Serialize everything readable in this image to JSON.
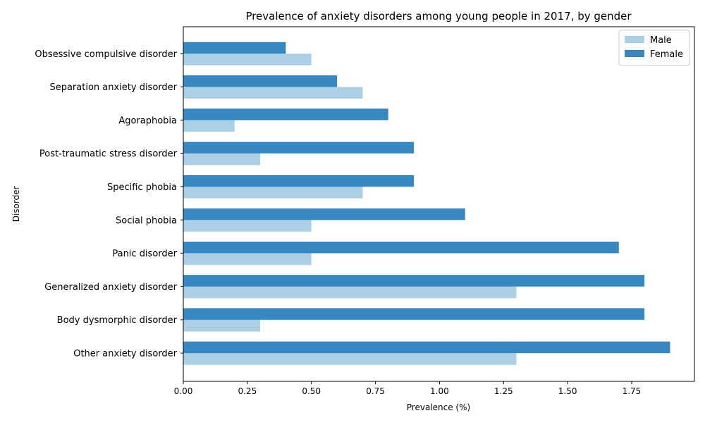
{
  "chart_data": {
    "type": "bar",
    "orientation": "horizontal",
    "title": "Prevalence of anxiety disorders among young people in 2017, by gender",
    "xlabel": "Prevalence (%)",
    "ylabel": "Disorder",
    "categories": [
      "Other anxiety disorder",
      "Body dysmorphic disorder",
      "Generalized anxiety disorder",
      "Panic disorder",
      "Social phobia",
      "Specific phobia",
      "Post-traumatic stress disorder",
      "Agoraphobia",
      "Separation anxiety disorder",
      "Obsessive compulsive disorder"
    ],
    "series": [
      {
        "name": "Male",
        "color": "#abd0e6",
        "values": [
          1.3,
          0.3,
          1.3,
          0.5,
          0.5,
          0.7,
          0.3,
          0.2,
          0.7,
          0.5
        ]
      },
      {
        "name": "Female",
        "color": "#3787c0",
        "values": [
          1.9,
          1.8,
          1.8,
          1.7,
          1.1,
          0.9,
          0.9,
          0.8,
          0.6,
          0.4
        ]
      }
    ],
    "xlim": [
      0,
      1.995
    ],
    "xticks": [
      "0.00",
      "0.25",
      "0.50",
      "0.75",
      "1.00",
      "1.25",
      "1.50",
      "1.75"
    ],
    "grid": false,
    "legend_position": "top-right"
  }
}
